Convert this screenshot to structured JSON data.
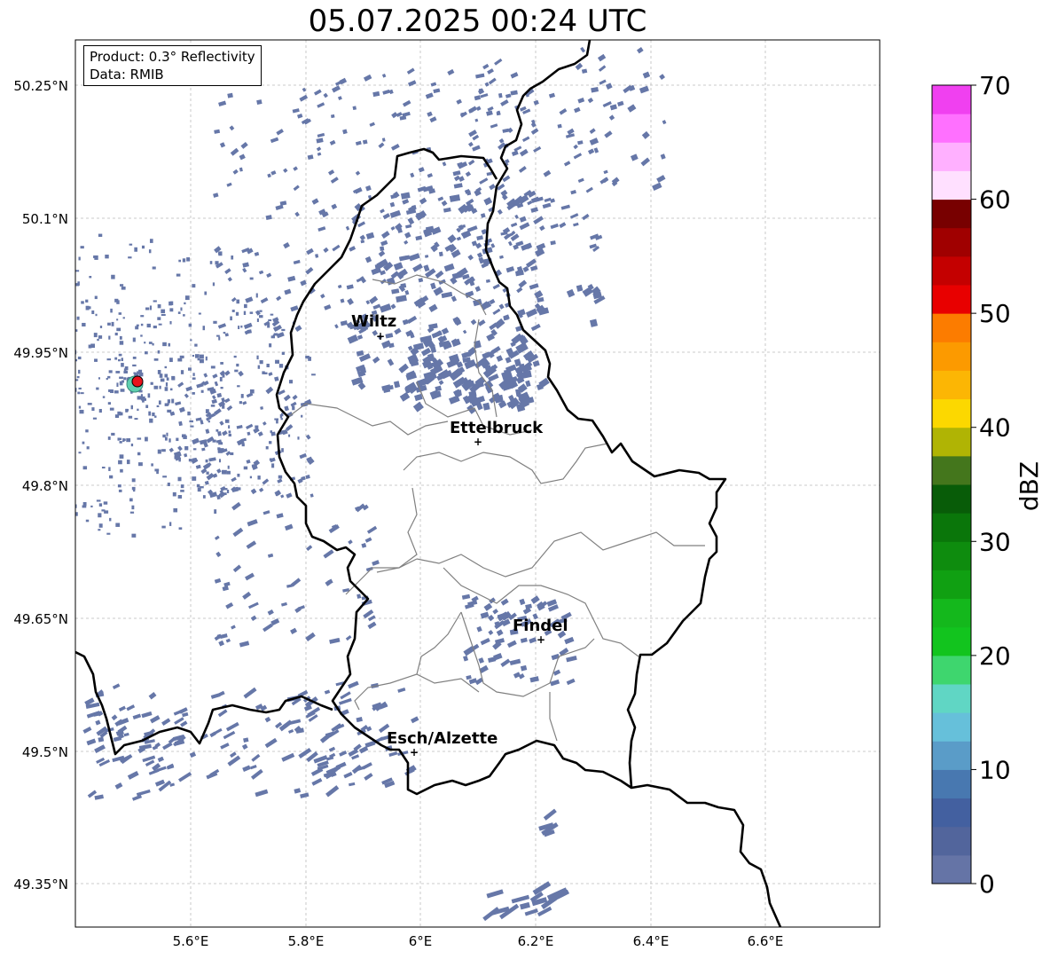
{
  "title": "05.07.2025 00:24 UTC",
  "info": {
    "product": "Product: 0.3° Reflectivity",
    "data": "Data: RMIB"
  },
  "map": {
    "lat_ticks": [
      "50.25°N",
      "50.1°N",
      "49.95°N",
      "49.8°N",
      "49.65°N",
      "49.5°N",
      "49.35°N"
    ],
    "lon_ticks": [
      "5.6°E",
      "5.8°E",
      "6°E",
      "6.2°E",
      "6.4°E",
      "6.6°E"
    ],
    "cities": [
      {
        "name": "Wiltz"
      },
      {
        "name": "Ettelbruck"
      },
      {
        "name": "Findel"
      },
      {
        "name": "Esch/Alzette"
      }
    ],
    "echo_color": "#6677a8",
    "radar_color": "#e8141c"
  },
  "colorbar": {
    "label": "dBZ",
    "ticks": [
      "0",
      "10",
      "20",
      "30",
      "40",
      "50",
      "60",
      "70"
    ],
    "colors": [
      "#6574a6",
      "#52659c",
      "#4360a0",
      "#4878b0",
      "#5a9cc8",
      "#66c0da",
      "#60d6c4",
      "#3ed66e",
      "#12c41e",
      "#14b81c",
      "#10a012",
      "#0e8c0e",
      "#0a760a",
      "#085c08",
      "#44761c",
      "#b0b404",
      "#fcd800",
      "#fcb604",
      "#fc9a00",
      "#fc7c00",
      "#e80000",
      "#c40000",
      "#a00000",
      "#780000",
      "#ffe0ff",
      "#ffb0ff",
      "#ff70ff",
      "#f040f0"
    ]
  }
}
